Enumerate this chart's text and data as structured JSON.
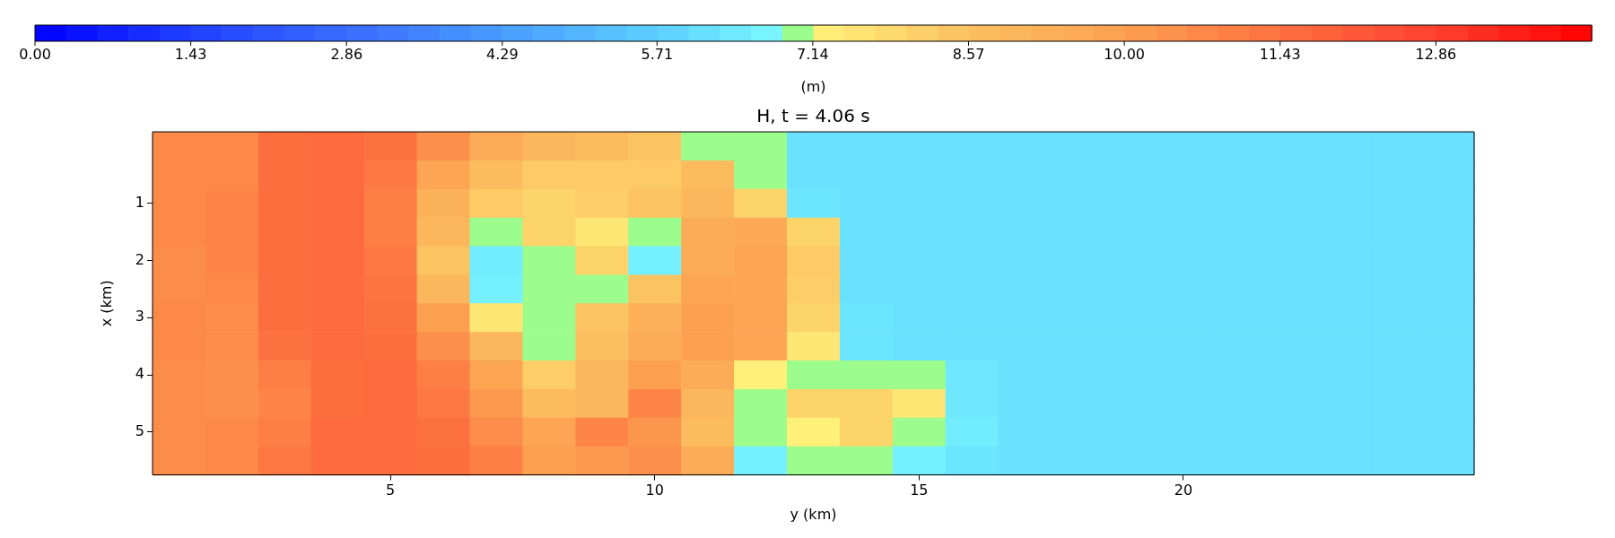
{
  "chart_data": {
    "type": "heatmap",
    "title": "H, t = 4.06 s",
    "xlabel": "y (km)",
    "ylabel": "x (km)",
    "clabel": "(m)",
    "categories": [
      null,
      null,
      null,
      null,
      "5",
      null,
      null,
      null,
      null,
      "10",
      null,
      null,
      null,
      null,
      "15",
      null,
      null,
      null,
      null,
      "20",
      null,
      null,
      null,
      null,
      null
    ],
    "y_categories": [
      null,
      null,
      "1",
      null,
      "2",
      null,
      "3",
      null,
      "4",
      null,
      "5",
      null
    ],
    "clim": [
      0,
      14.29
    ],
    "cticks": [
      {
        "value": 0,
        "label": "0.00"
      },
      {
        "value": 1.43,
        "label": "1.43"
      },
      {
        "value": 2.86,
        "label": "2.86"
      },
      {
        "value": 4.29,
        "label": "4.29"
      },
      {
        "value": 5.71,
        "label": "5.71"
      },
      {
        "value": 7.14,
        "label": "7.14"
      },
      {
        "value": 8.57,
        "label": "8.57"
      },
      {
        "value": 10,
        "label": "10.00"
      },
      {
        "value": 11.43,
        "label": "11.43"
      },
      {
        "value": 12.86,
        "label": "12.86"
      }
    ],
    "cells": [
      [
        10.7,
        10.7,
        11.5,
        11.6,
        11.4,
        10.5,
        9.5,
        9.0,
        8.8,
        8.5,
        7.0,
        6.9,
        6.2,
        6.2,
        6.2,
        6.2,
        6.2,
        6.2,
        6.2,
        6.2,
        6.2,
        6.2,
        6.2,
        6.2,
        6.2
      ],
      [
        10.7,
        10.7,
        11.5,
        11.6,
        11.2,
        9.8,
        8.8,
        8.3,
        8.3,
        8.3,
        8.8,
        6.8,
        6.2,
        6.2,
        6.2,
        6.2,
        6.2,
        6.2,
        6.2,
        6.2,
        6.2,
        6.2,
        6.2,
        6.2,
        6.2
      ],
      [
        10.7,
        10.8,
        11.5,
        11.6,
        11.0,
        9.2,
        8.3,
        8.0,
        8.2,
        8.5,
        9.0,
        8.0,
        6.3,
        6.2,
        6.2,
        6.2,
        6.2,
        6.2,
        6.2,
        6.2,
        6.2,
        6.2,
        6.2,
        6.2,
        6.2
      ],
      [
        10.7,
        10.8,
        11.5,
        11.6,
        11.0,
        9.0,
        7.0,
        8.0,
        7.5,
        7.0,
        9.5,
        9.6,
        8.0,
        6.2,
        6.2,
        6.2,
        6.2,
        6.2,
        6.2,
        6.2,
        6.2,
        6.2,
        6.2,
        6.2,
        6.2
      ],
      [
        10.6,
        10.8,
        11.5,
        11.6,
        11.2,
        8.5,
        6.5,
        7.0,
        8.0,
        6.6,
        9.5,
        9.8,
        8.3,
        6.2,
        6.2,
        6.2,
        6.2,
        6.2,
        6.2,
        6.2,
        6.2,
        6.2,
        6.2,
        6.2,
        6.2
      ],
      [
        10.6,
        10.7,
        11.5,
        11.6,
        11.3,
        9.0,
        6.6,
        7.0,
        7.0,
        8.5,
        9.8,
        9.8,
        8.2,
        6.2,
        6.2,
        6.2,
        6.2,
        6.2,
        6.2,
        6.2,
        6.2,
        6.2,
        6.2,
        6.2,
        6.2
      ],
      [
        10.7,
        10.6,
        11.5,
        11.6,
        11.4,
        10.0,
        7.5,
        7.0,
        8.5,
        9.3,
        10.0,
        9.8,
        8.0,
        6.3,
        6.2,
        6.2,
        6.2,
        6.2,
        6.2,
        6.2,
        6.2,
        6.2,
        6.2,
        6.2,
        6.2
      ],
      [
        10.7,
        10.6,
        11.4,
        11.6,
        11.5,
        10.5,
        9.0,
        7.0,
        8.6,
        9.5,
        10.0,
        9.8,
        7.5,
        6.3,
        6.2,
        6.2,
        6.2,
        6.2,
        6.2,
        6.2,
        6.2,
        6.2,
        6.2,
        6.2,
        6.2
      ],
      [
        10.6,
        10.5,
        11.0,
        11.5,
        11.6,
        11.0,
        9.8,
        8.2,
        9.0,
        10.0,
        9.5,
        7.2,
        6.8,
        7.0,
        6.9,
        6.4,
        6.2,
        6.2,
        6.2,
        6.2,
        6.2,
        6.2,
        6.2,
        6.2,
        6.2
      ],
      [
        10.6,
        10.5,
        10.8,
        11.5,
        11.6,
        11.2,
        10.2,
        8.8,
        9.0,
        10.8,
        9.0,
        7.0,
        8.0,
        8.0,
        7.5,
        6.4,
        6.2,
        6.2,
        6.2,
        6.2,
        6.2,
        6.2,
        6.2,
        6.2,
        6.2
      ],
      [
        10.6,
        10.7,
        11.0,
        11.6,
        11.6,
        11.4,
        10.6,
        9.8,
        10.8,
        10.3,
        8.8,
        7.0,
        7.2,
        8.0,
        7.0,
        6.5,
        6.2,
        6.2,
        6.2,
        6.2,
        6.2,
        6.2,
        6.2,
        6.2,
        6.2
      ],
      [
        10.6,
        10.7,
        11.2,
        11.6,
        11.6,
        11.5,
        11.0,
        10.0,
        10.2,
        10.5,
        9.5,
        6.6,
        6.8,
        6.9,
        6.6,
        6.3,
        6.2,
        6.2,
        6.2,
        6.2,
        6.2,
        6.2,
        6.2,
        6.2,
        6.2
      ]
    ]
  }
}
